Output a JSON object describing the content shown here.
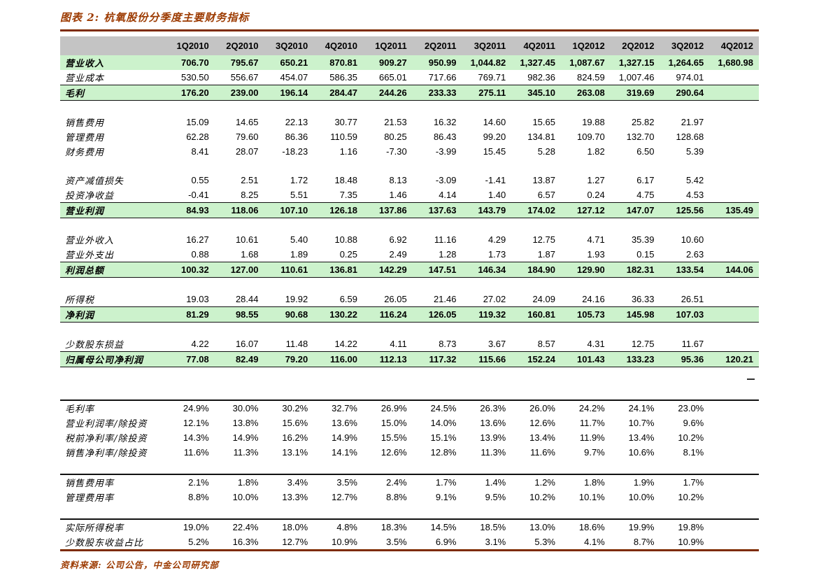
{
  "title": "图表 2: 杭氧股份分季度主要财务指标",
  "source_note": "资料来源: 公司公告，中金公司研究部",
  "colors": {
    "accent_brick": "#9c3a00",
    "rule_brick": "#7e2b00",
    "header_bg": "#c4c4c4",
    "highlight_green": "#ccf2cc"
  },
  "table": {
    "columns": [
      "1Q2010",
      "2Q2010",
      "3Q2010",
      "4Q2010",
      "1Q2011",
      "2Q2011",
      "3Q2011",
      "4Q2011",
      "1Q2012",
      "2Q2012",
      "3Q2012",
      "4Q2012"
    ],
    "rows": [
      {
        "label": "营业收入",
        "style": "highlight",
        "values": [
          "706.70",
          "795.67",
          "650.21",
          "870.81",
          "909.27",
          "950.99",
          "1,044.82",
          "1,327.45",
          "1,087.67",
          "1,327.15",
          "1,264.65",
          "1,680.98"
        ]
      },
      {
        "label": "营业成本",
        "style": "plain",
        "values": [
          "530.50",
          "556.67",
          "454.07",
          "586.35",
          "665.01",
          "717.66",
          "769.71",
          "982.36",
          "824.59",
          "1,007.46",
          "974.01",
          ""
        ]
      },
      {
        "label": "毛利",
        "style": "summary",
        "values": [
          "176.20",
          "239.00",
          "196.14",
          "284.47",
          "244.26",
          "233.33",
          "275.11",
          "345.10",
          "263.08",
          "319.69",
          "290.64",
          ""
        ]
      },
      {
        "style": "gap"
      },
      {
        "label": "销售费用",
        "style": "plain",
        "values": [
          "15.09",
          "14.65",
          "22.13",
          "30.77",
          "21.53",
          "16.32",
          "14.60",
          "15.65",
          "19.88",
          "25.82",
          "21.97",
          ""
        ]
      },
      {
        "label": "管理费用",
        "style": "plain",
        "values": [
          "62.28",
          "79.60",
          "86.36",
          "110.59",
          "80.25",
          "86.43",
          "99.20",
          "134.81",
          "109.70",
          "132.70",
          "128.68",
          ""
        ]
      },
      {
        "label": "财务费用",
        "style": "plain",
        "values": [
          "8.41",
          "28.07",
          "-18.23",
          "1.16",
          "-7.30",
          "-3.99",
          "15.45",
          "5.28",
          "1.82",
          "6.50",
          "5.39",
          ""
        ]
      },
      {
        "style": "gap"
      },
      {
        "label": "资产减值损失",
        "style": "plain",
        "values": [
          "0.55",
          "2.51",
          "1.72",
          "18.48",
          "8.13",
          "-3.09",
          "-1.41",
          "13.87",
          "1.27",
          "6.17",
          "5.42",
          ""
        ]
      },
      {
        "label": "投资净收益",
        "style": "plain",
        "values": [
          "-0.41",
          "8.25",
          "5.51",
          "7.35",
          "1.46",
          "4.14",
          "1.40",
          "6.57",
          "0.24",
          "4.75",
          "4.53",
          ""
        ]
      },
      {
        "label": "营业利润",
        "style": "summary",
        "values": [
          "84.93",
          "118.06",
          "107.10",
          "126.18",
          "137.86",
          "137.63",
          "143.79",
          "174.02",
          "127.12",
          "147.07",
          "125.56",
          "135.49"
        ]
      },
      {
        "style": "gap"
      },
      {
        "label": "营业外收入",
        "style": "plain",
        "values": [
          "16.27",
          "10.61",
          "5.40",
          "10.88",
          "6.92",
          "11.16",
          "4.29",
          "12.75",
          "4.71",
          "35.39",
          "10.60",
          ""
        ]
      },
      {
        "label": "营业外支出",
        "style": "plain",
        "values": [
          "0.88",
          "1.68",
          "1.89",
          "0.25",
          "2.49",
          "1.28",
          "1.73",
          "1.87",
          "1.93",
          "0.15",
          "2.63",
          ""
        ]
      },
      {
        "label": "利润总额",
        "style": "summary",
        "values": [
          "100.32",
          "127.00",
          "110.61",
          "136.81",
          "142.29",
          "147.51",
          "146.34",
          "184.90",
          "129.90",
          "182.31",
          "133.54",
          "144.06"
        ]
      },
      {
        "style": "gap"
      },
      {
        "label": "所得税",
        "style": "plain",
        "values": [
          "19.03",
          "28.44",
          "19.92",
          "6.59",
          "26.05",
          "21.46",
          "27.02",
          "24.09",
          "24.16",
          "36.33",
          "26.51",
          ""
        ]
      },
      {
        "label": "净利润",
        "style": "summary",
        "values": [
          "81.29",
          "98.55",
          "90.68",
          "130.22",
          "116.24",
          "126.05",
          "119.32",
          "160.81",
          "105.73",
          "145.98",
          "107.03",
          ""
        ]
      },
      {
        "style": "gap"
      },
      {
        "label": "少数股东损益",
        "style": "plain",
        "values": [
          "4.22",
          "16.07",
          "11.48",
          "14.22",
          "4.11",
          "8.73",
          "3.67",
          "8.57",
          "4.31",
          "12.75",
          "11.67",
          ""
        ]
      },
      {
        "label": "归属母公司净利润",
        "style": "summary",
        "values": [
          "77.08",
          "82.49",
          "79.20",
          "116.00",
          "112.13",
          "117.32",
          "115.66",
          "152.24",
          "101.43",
          "133.23",
          "95.36",
          "120.21"
        ]
      },
      {
        "style": "gap-large"
      },
      {
        "label": "毛利率",
        "style": "plain rule",
        "values": [
          "24.9%",
          "30.0%",
          "30.2%",
          "32.7%",
          "26.9%",
          "24.5%",
          "26.3%",
          "26.0%",
          "24.2%",
          "24.1%",
          "23.0%",
          ""
        ]
      },
      {
        "label": "营业利润率/除投资",
        "style": "plain",
        "values": [
          "12.1%",
          "13.8%",
          "15.6%",
          "13.6%",
          "15.0%",
          "14.0%",
          "13.6%",
          "12.6%",
          "11.7%",
          "10.7%",
          "9.6%",
          ""
        ]
      },
      {
        "label": "税前净利率/除投资",
        "style": "plain",
        "values": [
          "14.3%",
          "14.9%",
          "16.2%",
          "14.9%",
          "15.5%",
          "15.1%",
          "13.9%",
          "13.4%",
          "11.9%",
          "13.4%",
          "10.2%",
          ""
        ]
      },
      {
        "label": "销售净利率/除投资",
        "style": "plain",
        "values": [
          "11.6%",
          "11.3%",
          "13.1%",
          "14.1%",
          "12.6%",
          "12.8%",
          "11.3%",
          "11.6%",
          "9.7%",
          "10.6%",
          "8.1%",
          ""
        ]
      },
      {
        "style": "gap"
      },
      {
        "label": "销售费用率",
        "style": "plain rule",
        "values": [
          "2.1%",
          "1.8%",
          "3.4%",
          "3.5%",
          "2.4%",
          "1.7%",
          "1.4%",
          "1.2%",
          "1.8%",
          "1.9%",
          "1.7%",
          ""
        ]
      },
      {
        "label": "管理费用率",
        "style": "plain",
        "values": [
          "8.8%",
          "10.0%",
          "13.3%",
          "12.7%",
          "8.8%",
          "9.1%",
          "9.5%",
          "10.2%",
          "10.1%",
          "10.0%",
          "10.2%",
          ""
        ]
      },
      {
        "style": "gap"
      },
      {
        "label": "实际所得税率",
        "style": "plain rule",
        "values": [
          "19.0%",
          "22.4%",
          "18.0%",
          "4.8%",
          "18.3%",
          "14.5%",
          "18.5%",
          "13.0%",
          "18.6%",
          "19.9%",
          "19.8%",
          ""
        ]
      },
      {
        "label": "少数股东收益占比",
        "style": "plain",
        "values": [
          "5.2%",
          "16.3%",
          "12.7%",
          "10.9%",
          "3.5%",
          "6.9%",
          "3.1%",
          "5.3%",
          "4.1%",
          "8.7%",
          "10.9%",
          ""
        ]
      }
    ]
  }
}
